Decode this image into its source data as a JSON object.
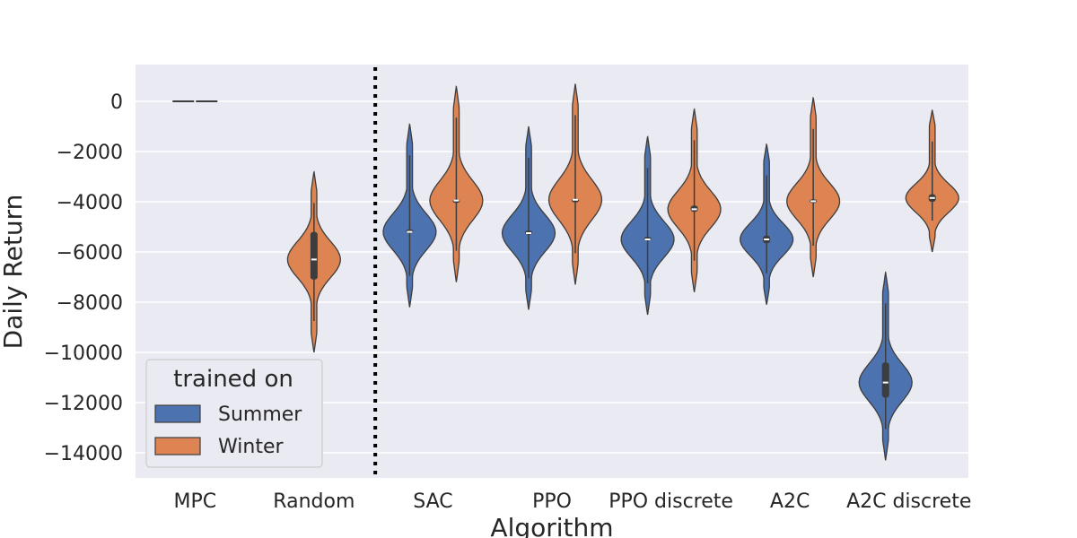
{
  "chart_data": {
    "type": "violin",
    "xlabel": "Algorithm",
    "ylabel": "Daily Return",
    "categories": [
      "MPC",
      "Random",
      "SAC",
      "PPO",
      "PPO discrete",
      "A2C",
      "A2C discrete"
    ],
    "ylim": [
      -15000,
      1500
    ],
    "yticks": [
      0,
      -2000,
      -4000,
      -6000,
      -8000,
      -10000,
      -12000,
      -14000
    ],
    "ytick_labels": [
      "0",
      "−2000",
      "−4000",
      "−6000",
      "−8000",
      "−10000",
      "−12000",
      "−14000"
    ],
    "grid": true,
    "divider_after_category": "Random",
    "legend": {
      "title": "trained on",
      "placement": "lower-left"
    },
    "series": [
      {
        "name": "Summer",
        "color": "#4c72b0",
        "violins": [
          {
            "category": "MPC",
            "min": -40,
            "max": 40,
            "q1": -10,
            "median": 0,
            "q3": 10
          },
          null,
          {
            "category": "SAC",
            "min": -8200,
            "max": -900,
            "q1": -5250,
            "median": -5200,
            "q3": -5100
          },
          {
            "category": "PPO",
            "min": -8300,
            "max": -1000,
            "q1": -5300,
            "median": -5250,
            "q3": -5150
          },
          {
            "category": "PPO discrete",
            "min": -8500,
            "max": -1400,
            "q1": -5550,
            "median": -5500,
            "q3": -5400
          },
          {
            "category": "A2C",
            "min": -8100,
            "max": -1700,
            "q1": -5650,
            "median": -5500,
            "q3": -5350
          },
          {
            "category": "A2C discrete",
            "min": -14300,
            "max": -6800,
            "q1": -11800,
            "median": -11200,
            "q3": -10400
          }
        ]
      },
      {
        "name": "Winter",
        "color": "#dd8452",
        "violins": [
          {
            "category": "MPC",
            "min": -40,
            "max": 40,
            "q1": -10,
            "median": 0,
            "q3": 10
          },
          {
            "category": "Random",
            "min": -10000,
            "max": -2800,
            "q1": -7100,
            "median": -6300,
            "q3": -5200
          },
          {
            "category": "SAC",
            "min": -7200,
            "max": 600,
            "q1": -3950,
            "median": -3950,
            "q3": -3900
          },
          {
            "category": "PPO",
            "min": -7300,
            "max": 700,
            "q1": -3950,
            "median": -3920,
            "q3": -3880
          },
          {
            "category": "PPO discrete",
            "min": -7600,
            "max": -300,
            "q1": -4400,
            "median": -4300,
            "q3": -4150
          },
          {
            "category": "A2C",
            "min": -7000,
            "max": 150,
            "q1": -4050,
            "median": -3980,
            "q3": -3900
          },
          {
            "category": "A2C discrete",
            "min": -6000,
            "max": -350,
            "q1": -4000,
            "median": -3850,
            "q3": -3700
          }
        ]
      }
    ]
  }
}
